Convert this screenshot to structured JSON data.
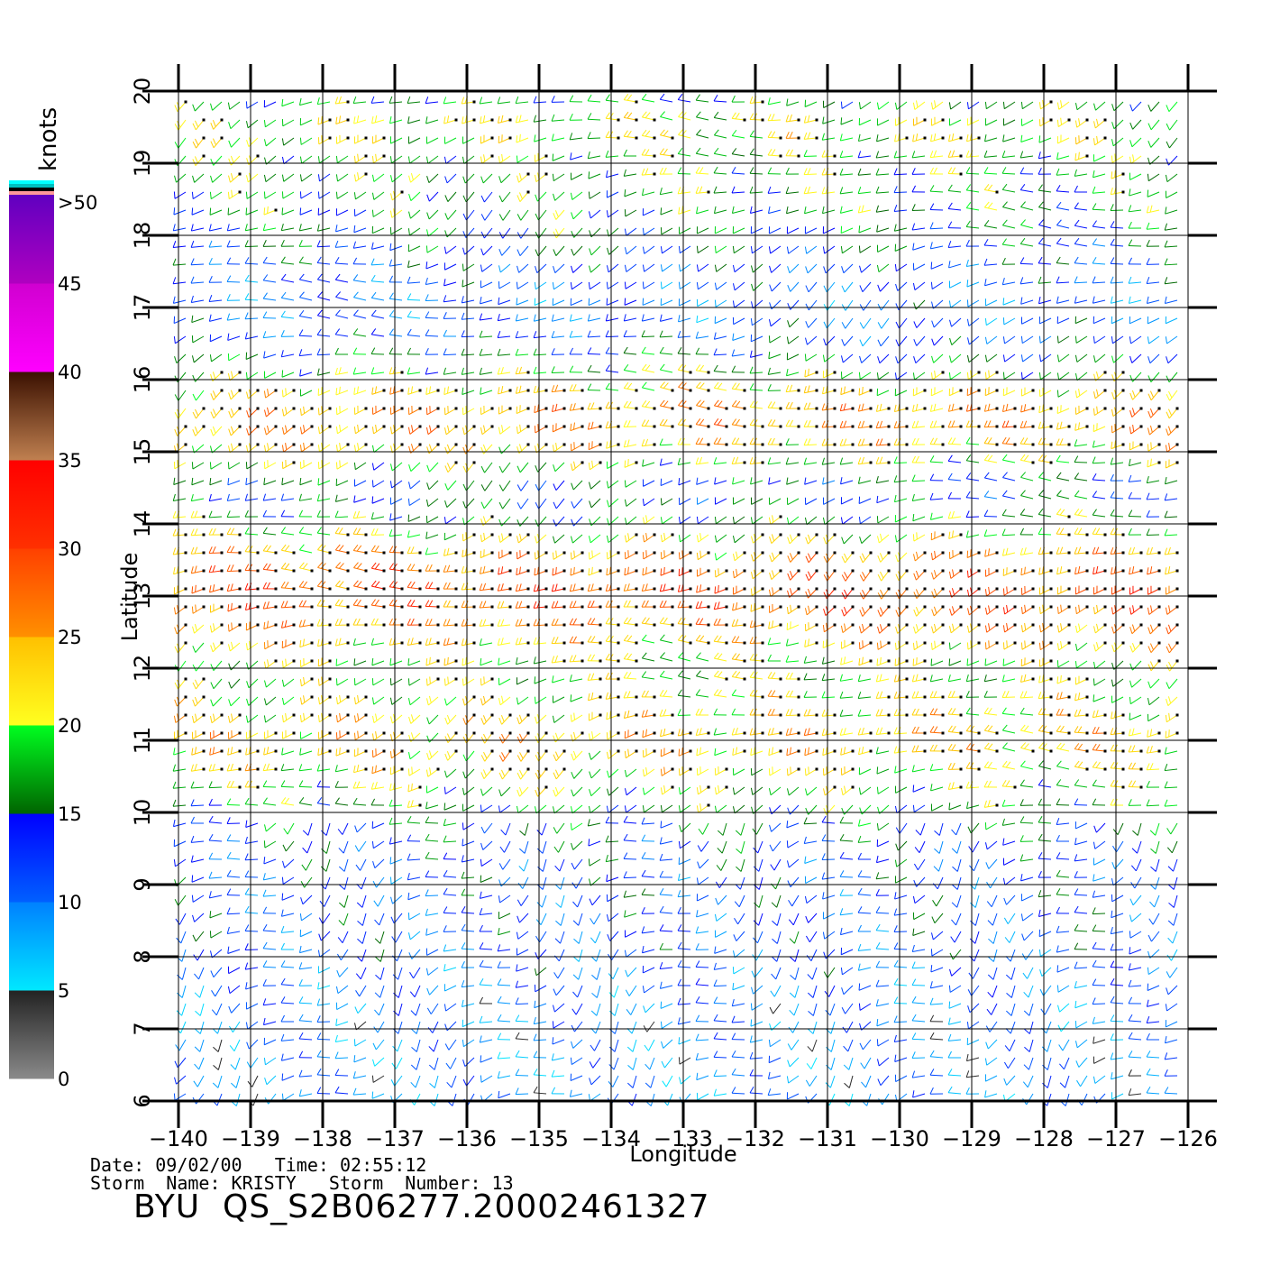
{
  "legend": {
    "unit": "knots",
    "labels": [
      ">50",
      "45",
      "40",
      "35",
      "30",
      "25",
      "20",
      "15",
      "10",
      "5",
      "0"
    ],
    "bands": [
      {
        "from": 0,
        "to": 5,
        "colors": [
          "#8a8a8a",
          "#222222"
        ]
      },
      {
        "from": 5,
        "to": 10,
        "colors": [
          "#00e8ff",
          "#0080ff"
        ]
      },
      {
        "from": 10,
        "to": 15,
        "colors": [
          "#0060ff",
          "#0000ff"
        ]
      },
      {
        "from": 15,
        "to": 20,
        "colors": [
          "#006400",
          "#00ff20"
        ]
      },
      {
        "from": 20,
        "to": 25,
        "colors": [
          "#ffff20",
          "#ffc000"
        ]
      },
      {
        "from": 25,
        "to": 30,
        "colors": [
          "#ff9000",
          "#ff4000"
        ]
      },
      {
        "from": 30,
        "to": 35,
        "colors": [
          "#ff3000",
          "#ff0000"
        ]
      },
      {
        "from": 35,
        "to": 40,
        "colors": [
          "#c08050",
          "#3a1000"
        ]
      },
      {
        "from": 40,
        "to": 45,
        "colors": [
          "#ff00ff",
          "#d000d0"
        ]
      },
      {
        "from": 45,
        "to": 50,
        "colors": [
          "#b000c0",
          "#6000c0"
        ]
      }
    ],
    "top_stripes": [
      "#ff9999",
      "#000000",
      "#00c0c0",
      "#00ffff"
    ]
  },
  "map": {
    "xlabel": "Longitude",
    "ylabel": "Latitude",
    "lon_range": [
      -140,
      -126
    ],
    "lat_range": [
      6,
      20
    ],
    "lon_ticks": [
      -140,
      -139,
      -138,
      -137,
      -136,
      -135,
      -134,
      -133,
      -132,
      -131,
      -130,
      -129,
      -128,
      -127,
      -126
    ],
    "lat_ticks": [
      6,
      7,
      8,
      9,
      10,
      11,
      12,
      13,
      14,
      15,
      16,
      17,
      18,
      19,
      20
    ],
    "lon_tick_labels": [
      "−140",
      "−139",
      "−138",
      "−137",
      "−136",
      "−135",
      "−134",
      "−133",
      "−132",
      "−131",
      "−130",
      "−129",
      "−128",
      "−127",
      "−126"
    ],
    "lat_tick_labels": [
      "6",
      "7",
      "8",
      "9",
      "10",
      "11",
      "12",
      "13",
      "14",
      "15",
      "16",
      "17",
      "18",
      "19",
      "20"
    ],
    "grid": true,
    "field": {
      "type": "wind barbs",
      "bands": [
        {
          "lat": 20.0,
          "speed": 16
        },
        {
          "lat": 19.5,
          "speed": 21
        },
        {
          "lat": 19.0,
          "speed": 18
        },
        {
          "lat": 18.5,
          "speed": 17
        },
        {
          "lat": 18.0,
          "speed": 15
        },
        {
          "lat": 17.5,
          "speed": 12
        },
        {
          "lat": 17.0,
          "speed": 10
        },
        {
          "lat": 16.5,
          "speed": 13
        },
        {
          "lat": 16.0,
          "speed": 20
        },
        {
          "lat": 15.5,
          "speed": 26
        },
        {
          "lat": 15.0,
          "speed": 22
        },
        {
          "lat": 14.5,
          "speed": 13
        },
        {
          "lat": 14.0,
          "speed": 18
        },
        {
          "lat": 13.5,
          "speed": 26
        },
        {
          "lat": 13.0,
          "speed": 29
        },
        {
          "lat": 12.5,
          "speed": 24
        },
        {
          "lat": 12.0,
          "speed": 19
        },
        {
          "lat": 11.5,
          "speed": 21
        },
        {
          "lat": 11.0,
          "speed": 24
        },
        {
          "lat": 10.5,
          "speed": 20
        },
        {
          "lat": 10.0,
          "speed": 16
        },
        {
          "lat": 9.5,
          "speed": 13
        },
        {
          "lat": 9.0,
          "speed": 12
        },
        {
          "lat": 8.5,
          "speed": 12
        },
        {
          "lat": 8.0,
          "speed": 11
        },
        {
          "lat": 7.5,
          "speed": 10
        },
        {
          "lat": 7.0,
          "speed": 9
        },
        {
          "lat": 6.5,
          "speed": 9
        },
        {
          "lat": 6.0,
          "speed": 9
        }
      ]
    }
  },
  "footer": {
    "date_label": "Date:",
    "date": "09/02/00",
    "time_label": "Time:",
    "time": "02:55:12",
    "storm_name_label": "Storm  Name:",
    "storm_name": "KRISTY",
    "storm_number_label": "Storm  Number:",
    "storm_number": "13",
    "title": "BYU  QS_S2B06277.20002461327"
  }
}
